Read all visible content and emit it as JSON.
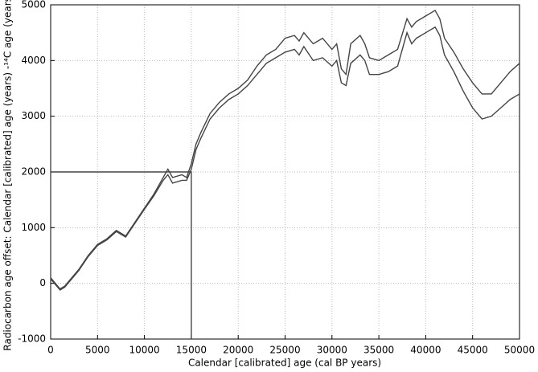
{
  "chart_data": {
    "type": "line",
    "xlabel": "Calendar [calibrated] age (cal BP years)",
    "ylabel": "Radiocarbon age offset:  Calendar [calibrated] age (years) -¹⁴C age (years)",
    "xlim": [
      0,
      50000
    ],
    "ylim": [
      -1000,
      5000
    ],
    "xticks": [
      0,
      5000,
      10000,
      15000,
      20000,
      25000,
      30000,
      35000,
      40000,
      45000,
      50000
    ],
    "yticks": [
      -1000,
      0,
      1000,
      2000,
      3000,
      4000,
      5000
    ],
    "grid": true,
    "series": [
      {
        "color": "#444444",
        "x": [
          0,
          500,
          1000,
          1500,
          2000,
          3000,
          4000,
          5000,
          6000,
          7000,
          8000,
          9000,
          10000,
          11000,
          12000,
          12500,
          13000,
          14000,
          14500,
          15000,
          15500,
          16000,
          17000,
          18000,
          19000,
          20000,
          21000,
          22000,
          23000,
          24000,
          25000,
          26000,
          26500,
          27000,
          28000,
          29000,
          30000,
          30500,
          31000,
          31500,
          32000,
          33000,
          33500,
          34000,
          35000,
          36000,
          37000,
          38000,
          38500,
          39000,
          40000,
          41000,
          41500,
          42000,
          43000,
          44000,
          45000,
          46000,
          47000,
          48000,
          49000,
          50000
        ],
        "values": [
          100,
          0,
          -100,
          -50,
          50,
          250,
          500,
          700,
          800,
          950,
          850,
          1100,
          1350,
          1600,
          1900,
          2050,
          1900,
          1950,
          1900,
          2150,
          2500,
          2700,
          3050,
          3250,
          3400,
          3500,
          3650,
          3900,
          4100,
          4200,
          4400,
          4450,
          4350,
          4500,
          4300,
          4400,
          4200,
          4300,
          3850,
          3750,
          4300,
          4450,
          4300,
          4050,
          4000,
          4100,
          4200,
          4750,
          4600,
          4700,
          4800,
          4900,
          4750,
          4400,
          4150,
          3850,
          3600,
          3400,
          3400,
          3600,
          3800,
          3950
        ]
      },
      {
        "color": "#444444",
        "x": [
          0,
          500,
          1000,
          1500,
          2000,
          3000,
          4000,
          5000,
          6000,
          7000,
          8000,
          9000,
          10000,
          11000,
          12000,
          12500,
          13000,
          14000,
          14500,
          15000,
          15500,
          16000,
          17000,
          18000,
          19000,
          20000,
          21000,
          22000,
          23000,
          24000,
          25000,
          26000,
          26500,
          27000,
          28000,
          29000,
          30000,
          30500,
          31000,
          31500,
          32000,
          33000,
          33500,
          34000,
          35000,
          36000,
          37000,
          38000,
          38500,
          39000,
          40000,
          41000,
          41500,
          42000,
          43000,
          44000,
          45000,
          46000,
          47000,
          48000,
          49000,
          50000
        ],
        "values": [
          80,
          -20,
          -120,
          -70,
          30,
          230,
          480,
          680,
          780,
          930,
          830,
          1080,
          1330,
          1570,
          1850,
          1950,
          1800,
          1850,
          1850,
          2050,
          2400,
          2600,
          2950,
          3150,
          3300,
          3400,
          3550,
          3750,
          3950,
          4050,
          4150,
          4200,
          4100,
          4250,
          4000,
          4050,
          3900,
          4000,
          3600,
          3550,
          3950,
          4100,
          4000,
          3750,
          3750,
          3800,
          3900,
          4500,
          4300,
          4400,
          4500,
          4600,
          4450,
          4100,
          3800,
          3450,
          3150,
          2950,
          3000,
          3150,
          3300,
          3400
        ]
      },
      {
        "color": "#444444",
        "x": [
          0,
          15000,
          15000
        ],
        "values": [
          2000,
          2000,
          -1000
        ]
      }
    ]
  }
}
